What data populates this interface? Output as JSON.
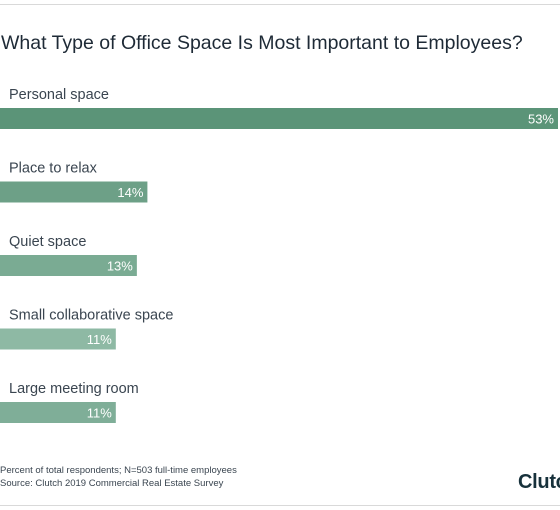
{
  "chart_data": {
    "type": "bar",
    "orientation": "horizontal",
    "title": "What Type of Office Space Is Most Important to Employees?",
    "categories": [
      "Personal space",
      "Place to relax",
      "Quiet space",
      "Small collaborative space",
      "Large meeting room"
    ],
    "values": [
      53,
      14,
      13,
      11,
      11
    ],
    "value_labels": [
      "53%",
      "14%",
      "13%",
      "11%",
      "11%"
    ],
    "unit": "%",
    "xlim": [
      0,
      53
    ],
    "grid": false,
    "legend": "none",
    "colors": [
      "#5b9478",
      "#6da087",
      "#7aab93",
      "#8eb9a4",
      "#7fae98"
    ]
  },
  "footer": {
    "note": "Percent of total respondents; N=503 full-time employees",
    "source": "Source: Clutch 2019 Commercial Real Estate Survey"
  },
  "brand": {
    "logo_text": "Clutch"
  }
}
